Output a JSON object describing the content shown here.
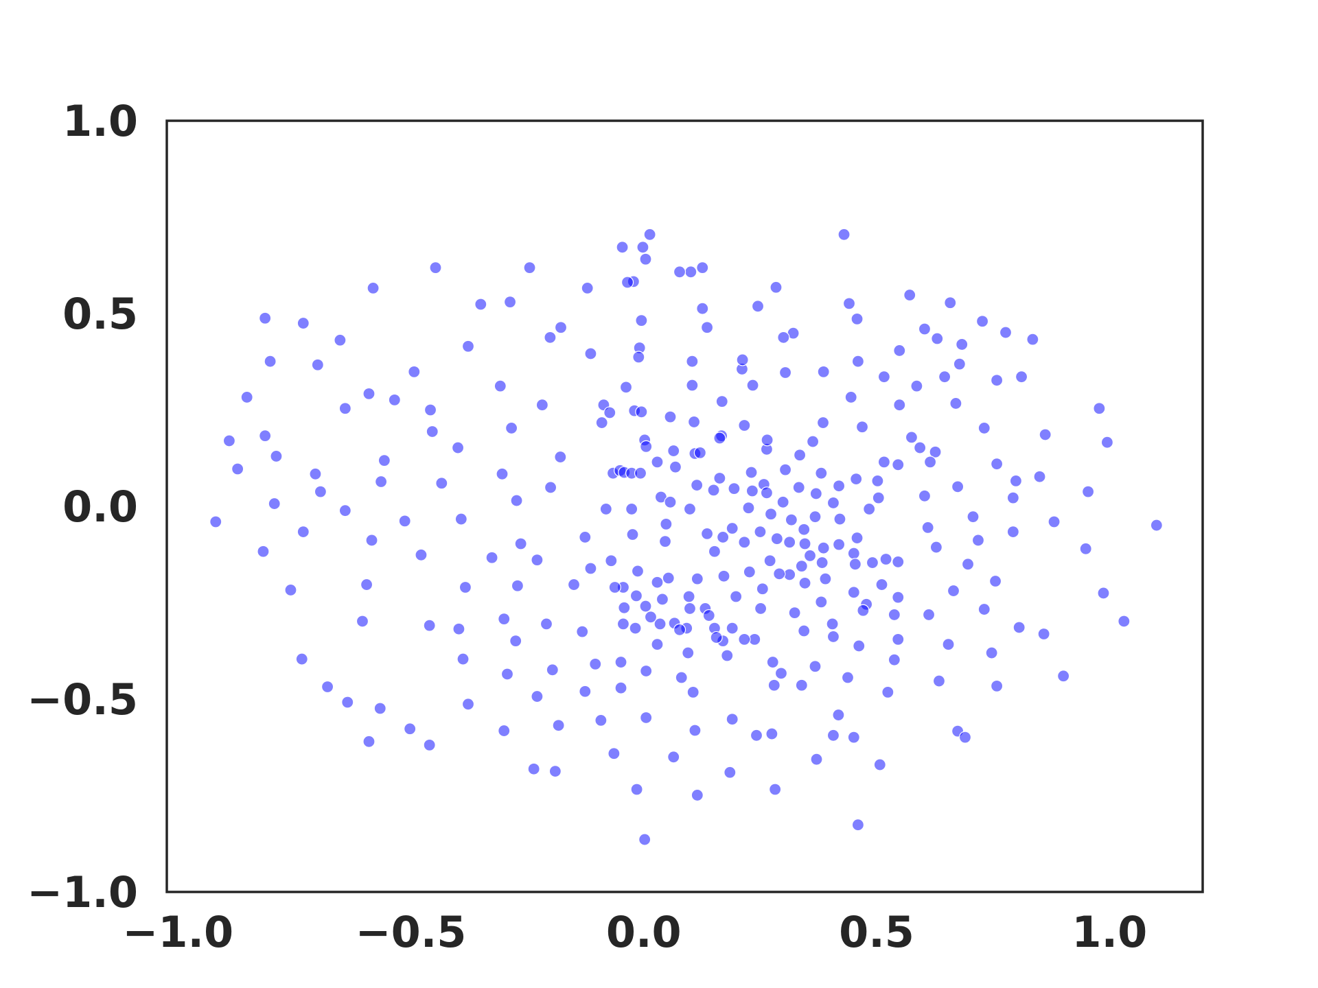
{
  "chart_data": {
    "type": "scatter",
    "color": "#0000ff",
    "alpha": 0.5,
    "edgecolor": "#ffffff",
    "xlim": [
      -1.024,
      1.2
    ],
    "ylim": [
      -1,
      1
    ],
    "xticks": [
      {
        "value": -1,
        "label": "−1.0"
      },
      {
        "value": -0.5,
        "label": "−0.5"
      },
      {
        "value": 0,
        "label": "0.0"
      },
      0.5,
      {
        "value": 1,
        "label": "1.0"
      }
    ],
    "yticks": [
      {
        "value": -1,
        "label": "−1.0"
      },
      {
        "value": -0.5,
        "label": "−0.5"
      },
      {
        "value": 0,
        "label": "0.0"
      },
      0.5,
      {
        "value": 1,
        "label": "1.0"
      }
    ],
    "x": [
      -0.919,
      1.101,
      0.43,
      0.46,
      0.002,
      0.013,
      -0.447,
      -0.581,
      -0.813,
      -0.731,
      -0.89,
      -0.872,
      -0.817,
      -0.758,
      -0.734,
      -0.679,
      -0.636,
      -0.59,
      -0.566,
      -0.502,
      -0.46,
      -0.604,
      -0.595,
      -0.584,
      -0.513,
      -0.478,
      -0.46,
      -0.383,
      -0.392,
      -0.434,
      -0.399,
      -0.454,
      -0.458,
      -0.493,
      -0.535,
      -0.59,
      -0.641,
      -0.652,
      -0.7,
      -0.802,
      -0.852,
      -0.813,
      -0.789,
      -0.705,
      -0.694,
      -0.641,
      -0.731,
      -0.793,
      -0.557,
      -0.564,
      -0.377,
      -0.35,
      -0.287,
      -0.245,
      -0.178,
      -0.201,
      -0.308,
      -0.284,
      -0.218,
      -0.179,
      -0.304,
      -0.273,
      -0.2,
      -0.264,
      -0.229,
      -0.271,
      -0.3,
      -0.275,
      -0.293,
      -0.196,
      -0.229,
      -0.3,
      -0.236,
      -0.183,
      -0.19,
      -0.377,
      -0.388,
      -0.397,
      -0.326,
      -0.209,
      -0.15,
      -0.126,
      -0.114,
      -0.132,
      -0.104,
      -0.126,
      -0.092,
      -0.064,
      -0.015,
      -0.049,
      -0.049,
      0.005,
      0.005,
      0.064,
      0.115,
      0.11,
      0.185,
      0.19,
      0.242,
      0.275,
      0.282,
      0.295,
      0.339,
      0.371,
      0.407,
      0.418,
      0.451,
      0.507,
      0.524,
      0.538,
      0.546,
      0.612,
      0.634,
      0.674,
      0.69,
      0.654,
      0.758,
      0.747,
      0.806,
      0.859,
      0.901,
      1.031,
      0.987,
      0.949,
      0.881,
      0.954,
      0.995,
      0.978,
      0.862,
      0.85,
      0.799,
      0.793,
      0.793,
      0.707,
      0.718,
      0.696,
      0.755,
      0.731,
      0.665,
      0.628,
      0.61,
      0.603,
      0.674,
      0.758,
      0.731,
      0.67,
      0.646,
      0.678,
      0.683,
      0.727,
      0.777,
      0.758,
      0.811,
      0.835,
      0.658,
      0.571,
      0.603,
      0.63,
      0.549,
      0.516,
      0.549,
      0.586,
      0.575,
      0.593,
      0.626,
      0.615,
      0.546,
      0.516,
      0.469,
      0.445,
      0.46,
      0.458,
      0.441,
      0.321,
      0.3,
      0.284,
      0.245,
      0.386,
      0.304,
      0.234,
      0.211,
      0.212,
      0.168,
      0.136,
      0.126,
      0.126,
      0.101,
      0.077,
      0.104,
      0.104,
      0.108,
      0.057,
      0.004,
      -0.002,
      -0.046,
      -0.022,
      -0.035,
      -0.005,
      -0.009,
      -0.011,
      -0.038,
      -0.02,
      -0.005,
      -0.086,
      -0.09,
      -0.073,
      -0.114,
      -0.121,
      0.002,
      0.005,
      0.029,
      0.068,
      0.064,
      0.11,
      0.121,
      0.167,
      0.163,
      0.216,
      0.264,
      0.265,
      0.335,
      0.363,
      0.385,
      0.231,
      0.194,
      0.15,
      0.163,
      0.114,
      0.037,
      0.057,
      0.099,
      0.048,
      0.046,
      0.136,
      0.17,
      0.152,
      0.19,
      0.225,
      0.233,
      0.258,
      0.264,
      0.299,
      0.273,
      0.304,
      0.381,
      0.333,
      0.37,
      0.407,
      0.419,
      0.456,
      0.502,
      0.504,
      0.484,
      0.458,
      0.421,
      0.368,
      0.317,
      0.344,
      0.25,
      0.216,
      0.286,
      0.313,
      0.346,
      0.386,
      0.419,
      0.271,
      0.357,
      0.339,
      0.383,
      0.451,
      0.454,
      0.491,
      0.52,
      0.546,
      0.511,
      0.546,
      0.538,
      0.478,
      0.451,
      0.471,
      0.39,
      0.346,
      0.313,
      0.291,
      0.255,
      0.227,
      0.172,
      0.198,
      0.251,
      0.324,
      0.381,
      0.405,
      0.407,
      0.462,
      0.438,
      0.368,
      0.344,
      0.277,
      0.28,
      0.238,
      0.216,
      0.19,
      0.17,
      0.179,
      0.152,
      0.156,
      0.132,
      0.14,
      0.099,
      0.097,
      0.066,
      0.092,
      0.077,
      0.095,
      0.081,
      0.106,
      0.029,
      0.035,
      0.04,
      0.053,
      0.029,
      0.004,
      0.015,
      -0.016,
      -0.044,
      -0.062,
      -0.07,
      -0.042,
      -0.044,
      -0.018,
      -0.024,
      -0.026,
      -0.081,
      -0.013,
      -0.066,
      -0.051,
      -0.042,
      -0.026,
      -0.007,
      0.115
    ],
    "values": [
      -0.04,
      -0.049,
      0.705,
      -0.826,
      -0.864,
      0.705,
      0.619,
      0.566,
      0.488,
      0.475,
      0.17,
      0.097,
      -0.117,
      -0.217,
      -0.396,
      -0.468,
      -0.508,
      -0.61,
      -0.524,
      -0.577,
      -0.619,
      -0.298,
      -0.203,
      -0.088,
      -0.038,
      -0.126,
      -0.309,
      -0.21,
      -0.033,
      0.06,
      0.152,
      0.194,
      0.25,
      0.349,
      0.276,
      0.292,
      0.254,
      0.431,
      0.367,
      0.376,
      0.283,
      0.183,
      0.13,
      0.084,
      0.038,
      -0.011,
      -0.066,
      0.007,
      0.119,
      0.064,
      0.415,
      0.524,
      0.53,
      0.619,
      0.464,
      0.438,
      0.312,
      0.203,
      0.263,
      0.128,
      0.084,
      0.015,
      0.049,
      -0.097,
      -0.139,
      -0.206,
      -0.292,
      -0.349,
      -0.435,
      -0.424,
      -0.493,
      -0.582,
      -0.681,
      -0.568,
      -0.687,
      -0.513,
      -0.396,
      -0.318,
      -0.133,
      -0.305,
      -0.203,
      -0.08,
      -0.161,
      -0.325,
      -0.409,
      -0.48,
      -0.555,
      -0.641,
      -0.734,
      -0.404,
      -0.471,
      -0.427,
      -0.548,
      -0.65,
      -0.749,
      -0.581,
      -0.69,
      -0.552,
      -0.594,
      -0.59,
      -0.734,
      -0.433,
      -0.464,
      -0.656,
      -0.594,
      -0.541,
      -0.599,
      -0.67,
      -0.482,
      -0.398,
      -0.345,
      -0.281,
      -0.453,
      -0.583,
      -0.599,
      -0.358,
      -0.466,
      -0.38,
      -0.314,
      -0.331,
      -0.44,
      -0.298,
      -0.225,
      -0.11,
      -0.04,
      0.038,
      0.166,
      0.254,
      0.186,
      0.077,
      0.066,
      0.022,
      -0.066,
      -0.027,
      -0.088,
      -0.15,
      -0.194,
      -0.267,
      -0.219,
      -0.106,
      -0.055,
      0.027,
      0.051,
      0.11,
      0.203,
      0.267,
      0.336,
      0.369,
      0.42,
      0.48,
      0.451,
      0.327,
      0.336,
      0.433,
      0.528,
      0.548,
      0.46,
      0.435,
      0.404,
      0.336,
      0.263,
      0.312,
      0.179,
      0.152,
      0.141,
      0.115,
      0.108,
      0.115,
      0.206,
      0.283,
      0.376,
      0.486,
      0.526,
      0.449,
      0.438,
      0.568,
      0.519,
      0.349,
      0.347,
      0.314,
      0.356,
      0.38,
      0.272,
      0.464,
      0.513,
      0.619,
      0.608,
      0.608,
      0.376,
      0.314,
      0.219,
      0.232,
      0.641,
      0.672,
      0.672,
      0.583,
      0.581,
      0.482,
      0.411,
      0.387,
      0.309,
      0.248,
      0.245,
      0.263,
      0.217,
      0.243,
      0.396,
      0.566,
      0.172,
      0.155,
      0.115,
      0.102,
      0.144,
      0.137,
      0.139,
      0.183,
      0.177,
      0.21,
      0.148,
      0.172,
      0.133,
      0.168,
      0.217,
      0.088,
      0.046,
      0.042,
      0.073,
      0.055,
      0.024,
      0.011,
      -0.007,
      -0.046,
      -0.091,
      -0.071,
      -0.08,
      -0.117,
      -0.057,
      -0.004,
      0.04,
      0.057,
      0.035,
      0.011,
      -0.02,
      0.095,
      0.086,
      0.049,
      0.033,
      0.009,
      0.053,
      0.071,
      0.066,
      0.022,
      -0.007,
      -0.082,
      -0.033,
      -0.027,
      -0.035,
      -0.06,
      -0.066,
      -0.093,
      -0.084,
      -0.093,
      -0.097,
      -0.108,
      -0.099,
      -0.141,
      -0.128,
      -0.155,
      -0.146,
      -0.122,
      -0.15,
      -0.146,
      -0.137,
      -0.144,
      -0.203,
      -0.236,
      -0.281,
      -0.254,
      -0.223,
      -0.27,
      -0.188,
      -0.199,
      -0.177,
      -0.175,
      -0.214,
      -0.17,
      -0.181,
      -0.234,
      -0.265,
      -0.276,
      -0.248,
      -0.305,
      -0.338,
      -0.362,
      -0.444,
      -0.415,
      -0.323,
      -0.404,
      -0.464,
      -0.345,
      -0.345,
      -0.316,
      -0.349,
      -0.387,
      -0.316,
      -0.34,
      -0.265,
      -0.283,
      -0.265,
      -0.234,
      -0.303,
      -0.316,
      -0.32,
      -0.38,
      -0.444,
      -0.482,
      -0.358,
      -0.305,
      -0.241,
      -0.186,
      -0.197,
      -0.259,
      -0.287,
      -0.232,
      -0.21,
      -0.21,
      -0.141,
      -0.263,
      -0.305,
      -0.316,
      -0.073,
      -0.007,
      -0.007,
      -0.168,
      0.086,
      0.093,
      0.088,
      0.086,
      0.086,
      -0.188
    ]
  }
}
